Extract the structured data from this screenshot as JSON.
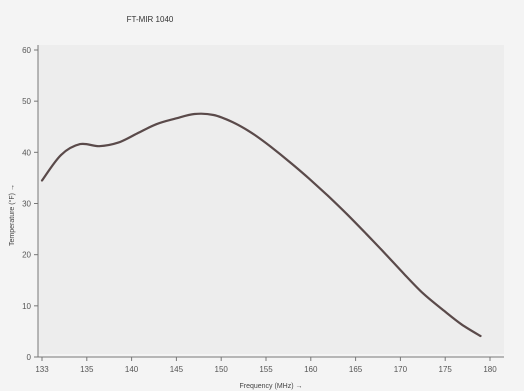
{
  "chart_data": {
    "type": "line",
    "title": "FT-MIR 1040",
    "legend": {
      "label": "",
      "placement": "top-right"
    },
    "xlabel": "Frequency (MHz) →",
    "ylabel": "Temperature (°F) →",
    "x_ticks": [
      "133",
      "135",
      "140",
      "145",
      "150",
      "155",
      "160",
      "165",
      "170",
      "175",
      "180"
    ],
    "y_ticks": [
      "0",
      "10",
      "20",
      "30",
      "40",
      "50",
      "60"
    ],
    "xlim": [
      133,
      180
    ],
    "ylim": [
      0,
      60
    ],
    "grid": false,
    "series": [
      {
        "color": "#5a4a4a",
        "x": [
          133,
          135,
          137,
          139,
          141,
          143,
          145,
          147,
          149,
          151,
          153,
          155,
          157,
          159,
          161,
          163,
          165,
          167,
          169,
          171,
          173,
          175,
          177,
          179
        ],
        "y": [
          34.5,
          39.5,
          41.6,
          41.2,
          41.9,
          43.7,
          45.5,
          46.6,
          47.5,
          47.3,
          45.9,
          43.8,
          41.1,
          38.1,
          34.9,
          31.5,
          27.9,
          24.1,
          20.2,
          16.2,
          12.4,
          9.3,
          6.4,
          4.1
        ]
      }
    ]
  }
}
